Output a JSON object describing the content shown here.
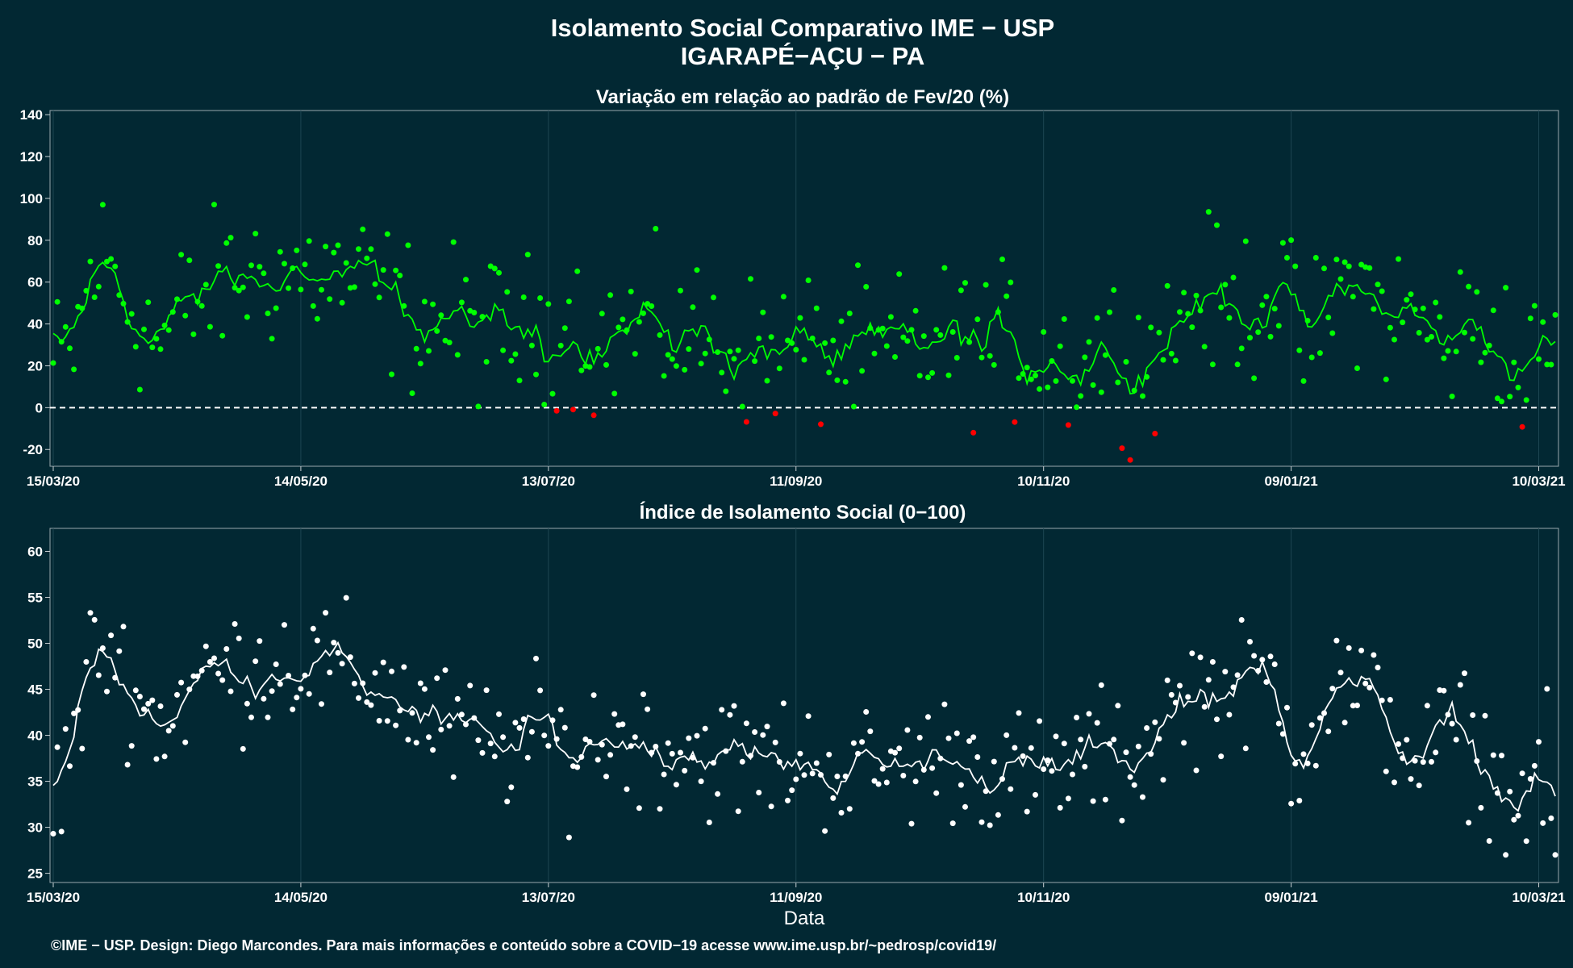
{
  "title_line1": "Isolamento Social Comparativo IME − USP",
  "title_line2": "IGARAPÉ−AÇU − PA",
  "x_axis_label": "Data",
  "footer": "©IME − USP. Design: Diego Marcondes. Para mais informações e conteúdo sobre a COVID−19 acesse www.ime.usp.br/~pedrosp/covid19/",
  "colors": {
    "background": "#022833",
    "positive": "#00ff00",
    "negative": "#ff0000",
    "index_points": "#ffffff",
    "axis_frame": "#9aa8ae"
  },
  "chart_data": [
    {
      "type": "scatter",
      "title": "Variação em relação ao padrão de Fev/20 (%)",
      "x_range": [
        "2020-03-15",
        "2021-03-14"
      ],
      "ylim": [
        -28,
        142
      ],
      "yticks": [
        -20,
        0,
        20,
        40,
        60,
        80,
        100,
        120,
        140
      ],
      "xticks": [
        "15/03/20",
        "14/05/20",
        "13/07/20",
        "11/09/20",
        "10/11/20",
        "09/01/21",
        "10/03/21"
      ],
      "grid": true,
      "reference_line": 0,
      "smoothing": "7-day moving average line",
      "keypoints": [
        [
          "2020-03-15",
          18
        ],
        [
          "2020-03-20",
          28
        ],
        [
          "2020-03-24",
          62
        ],
        [
          "2020-03-27",
          72
        ],
        [
          "2020-04-01",
          55
        ],
        [
          "2020-04-05",
          42
        ],
        [
          "2020-04-10",
          30
        ],
        [
          "2020-04-15",
          45
        ],
        [
          "2020-04-20",
          52
        ],
        [
          "2020-04-25",
          60
        ],
        [
          "2020-05-01",
          63
        ],
        [
          "2020-05-08",
          65
        ],
        [
          "2020-05-14",
          64
        ],
        [
          "2020-05-22",
          62
        ],
        [
          "2020-06-01",
          57
        ],
        [
          "2020-06-08",
          45
        ],
        [
          "2020-06-15",
          42
        ],
        [
          "2020-06-25",
          38
        ],
        [
          "2020-07-05",
          34
        ],
        [
          "2020-07-13",
          38
        ],
        [
          "2020-07-20",
          41
        ],
        [
          "2020-07-25",
          28
        ],
        [
          "2020-08-01",
          38
        ],
        [
          "2020-08-10",
          37
        ],
        [
          "2020-08-20",
          33
        ],
        [
          "2020-09-01",
          27
        ],
        [
          "2020-09-11",
          28
        ],
        [
          "2020-09-20",
          27
        ],
        [
          "2020-10-01",
          23
        ],
        [
          "2020-10-10",
          30
        ],
        [
          "2020-10-20",
          32
        ],
        [
          "2020-11-01",
          30
        ],
        [
          "2020-11-10",
          28
        ],
        [
          "2020-11-18",
          20
        ],
        [
          "2020-11-25",
          30
        ],
        [
          "2020-12-03",
          22
        ],
        [
          "2020-12-10",
          33
        ],
        [
          "2020-12-18",
          56
        ],
        [
          "2020-12-24",
          45
        ],
        [
          "2021-01-01",
          52
        ],
        [
          "2021-01-07",
          62
        ],
        [
          "2021-01-10",
          34
        ],
        [
          "2021-01-14",
          30
        ],
        [
          "2021-01-20",
          55
        ],
        [
          "2021-01-25",
          60
        ],
        [
          "2021-02-01",
          45
        ],
        [
          "2021-02-08",
          43
        ],
        [
          "2021-02-15",
          30
        ],
        [
          "2021-02-22",
          40
        ],
        [
          "2021-03-01",
          36
        ],
        [
          "2021-03-05",
          8
        ],
        [
          "2021-03-10",
          24
        ],
        [
          "2021-03-14",
          30
        ]
      ]
    },
    {
      "type": "scatter",
      "title": "Índice de Isolamento Social (0−100)",
      "x_range": [
        "2020-03-15",
        "2021-03-14"
      ],
      "ylim": [
        24,
        62.5
      ],
      "yticks": [
        25,
        30,
        35,
        40,
        45,
        50,
        55,
        60
      ],
      "xticks": [
        "15/03/20",
        "14/05/20",
        "13/07/20",
        "11/09/20",
        "10/11/20",
        "09/01/21",
        "10/03/21"
      ],
      "xlabel": "Data",
      "grid": true,
      "smoothing": "7-day moving average line",
      "keypoints": [
        [
          "2020-03-15",
          32
        ],
        [
          "2020-03-20",
          40
        ],
        [
          "2020-03-25",
          49
        ],
        [
          "2020-03-28",
          50
        ],
        [
          "2020-04-03",
          45
        ],
        [
          "2020-04-10",
          41
        ],
        [
          "2020-04-15",
          44
        ],
        [
          "2020-04-22",
          47
        ],
        [
          "2020-04-30",
          47
        ],
        [
          "2020-05-08",
          48
        ],
        [
          "2020-05-14",
          48
        ],
        [
          "2020-05-22",
          47
        ],
        [
          "2020-06-01",
          46
        ],
        [
          "2020-06-10",
          43
        ],
        [
          "2020-06-20",
          40
        ],
        [
          "2020-07-01",
          39
        ],
        [
          "2020-07-13",
          40
        ],
        [
          "2020-07-18",
          38
        ],
        [
          "2020-07-25",
          40
        ],
        [
          "2020-08-05",
          39.5
        ],
        [
          "2020-08-20",
          38
        ],
        [
          "2020-09-01",
          37
        ],
        [
          "2020-09-11",
          37.5
        ],
        [
          "2020-09-25",
          36
        ],
        [
          "2020-10-10",
          37
        ],
        [
          "2020-10-20",
          38
        ],
        [
          "2020-11-01",
          36
        ],
        [
          "2020-11-10",
          35
        ],
        [
          "2020-11-20",
          38
        ],
        [
          "2020-12-01",
          37
        ],
        [
          "2020-12-10",
          42
        ],
        [
          "2020-12-18",
          45
        ],
        [
          "2020-12-28",
          45
        ],
        [
          "2021-01-05",
          46
        ],
        [
          "2021-01-09",
          38
        ],
        [
          "2021-01-15",
          42
        ],
        [
          "2021-01-20",
          46
        ],
        [
          "2021-02-01",
          42
        ],
        [
          "2021-02-10",
          37
        ],
        [
          "2021-02-17",
          41
        ],
        [
          "2021-02-25",
          37
        ],
        [
          "2021-03-04",
          31
        ],
        [
          "2021-03-08",
          35
        ],
        [
          "2021-03-12",
          36
        ],
        [
          "2021-03-14",
          27
        ]
      ]
    }
  ]
}
